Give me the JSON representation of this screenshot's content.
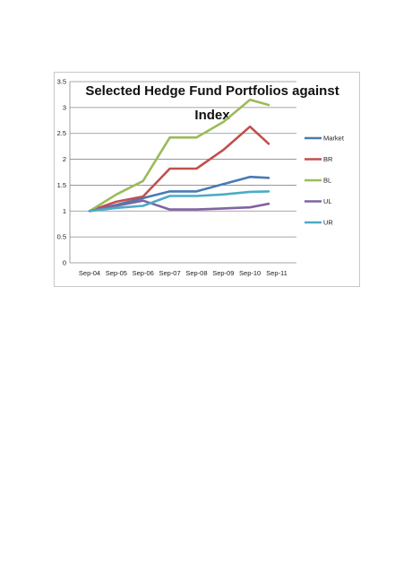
{
  "chart_data": {
    "type": "line",
    "title": "Selected Hedge Fund Portfolios against Index",
    "title_lines": [
      "Selected Hedge Fund Portfolios against",
      "Index"
    ],
    "categories": [
      "Sep-04",
      "Sep-05",
      "Sep-06",
      "Sep-07",
      "Sep-08",
      "Sep-09",
      "Sep-10",
      "Sep-11"
    ],
    "x": [
      0,
      0.5,
      1,
      1.5,
      2,
      2.5,
      3,
      3.5,
      4,
      4.5,
      5,
      5.5,
      6,
      6.5,
      7
    ],
    "ylim": [
      0,
      3.5
    ],
    "yticks": [
      "0",
      "0.5",
      "1",
      "1.5",
      "2",
      "2.5",
      "3",
      "3.5"
    ],
    "xlabel": "",
    "ylabel": "",
    "grid": true,
    "legend_position": "right",
    "series": [
      {
        "name": "Market",
        "color": "#4a7ab5",
        "x": [
          0,
          1,
          2,
          3,
          4,
          5,
          6,
          6.7
        ],
        "values": [
          1.0,
          1.12,
          1.25,
          1.38,
          1.38,
          1.52,
          1.66,
          1.64
        ]
      },
      {
        "name": "BR",
        "color": "#c0504d",
        "x": [
          0,
          1,
          2,
          3,
          4,
          5,
          6,
          6.7
        ],
        "values": [
          1.0,
          1.18,
          1.28,
          1.82,
          1.82,
          2.18,
          2.63,
          2.3
        ]
      },
      {
        "name": "BL",
        "color": "#9bbb59",
        "x": [
          0,
          1,
          2,
          3,
          4,
          5,
          6,
          6.7
        ],
        "values": [
          1.0,
          1.32,
          1.58,
          2.42,
          2.42,
          2.72,
          3.15,
          3.05
        ]
      },
      {
        "name": "UL",
        "color": "#8064a2",
        "x": [
          0,
          1,
          2,
          3,
          4,
          5,
          6,
          6.7
        ],
        "values": [
          1.0,
          1.1,
          1.2,
          1.03,
          1.03,
          1.05,
          1.07,
          1.14
        ]
      },
      {
        "name": "UR",
        "color": "#4bacc6",
        "x": [
          0,
          1,
          2,
          3,
          4,
          5,
          6,
          6.7
        ],
        "values": [
          1.0,
          1.06,
          1.1,
          1.29,
          1.29,
          1.32,
          1.37,
          1.38
        ]
      }
    ]
  }
}
